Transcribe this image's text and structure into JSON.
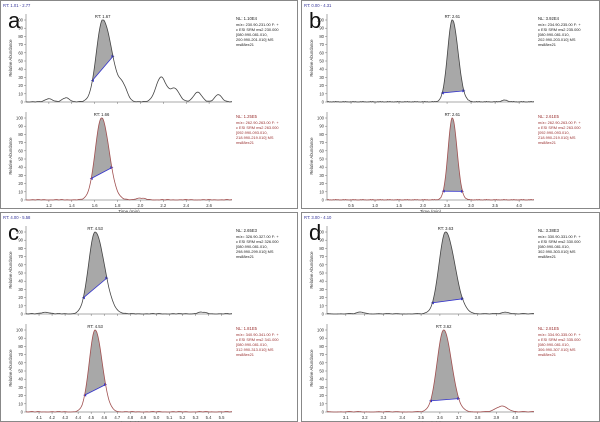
{
  "chart_data": [
    {
      "type": "line",
      "panel": "a",
      "rt_range": "RT: 1.01 - 2.77",
      "x_ticks": [
        "1.2",
        "1.4",
        "1.6",
        "1.8",
        "2.0",
        "2.2",
        "2.4",
        "2.6"
      ],
      "xlabel": "Time (min)",
      "ylabel": "Relative Abundance",
      "y_ticks": [
        "0",
        "10",
        "20",
        "30",
        "40",
        "50",
        "60",
        "70",
        "80",
        "90",
        "100"
      ],
      "xlim": [
        1.0,
        2.8
      ],
      "ylim": [
        0,
        100
      ],
      "traces": [
        {
          "rt_label": "RT: 1.67",
          "nl": "NL: 1.10E4",
          "filter": [
            "m/z= 230.90-231.00 F: +",
            "c ESI SRM ms2 230.000",
            "[080.990-081.010,",
            "200.990-201.010]  MS",
            "ms88ex21"
          ],
          "color": "#444444",
          "peak": {
            "center": 1.67,
            "height": 100,
            "width": 0.055,
            "tail": 1.5
          },
          "noise": [
            {
              "x": 1.85,
              "h": 14,
              "w": 0.035
            },
            {
              "x": 2.18,
              "h": 30,
              "w": 0.045
            },
            {
              "x": 2.3,
              "h": 16,
              "w": 0.04
            },
            {
              "x": 2.5,
              "h": 12,
              "w": 0.035
            },
            {
              "x": 2.68,
              "h": 9,
              "w": 0.03
            },
            {
              "x": 1.2,
              "h": 4,
              "w": 0.03
            },
            {
              "x": 1.35,
              "h": 5,
              "w": 0.03
            }
          ],
          "baseline": [
            1.58,
            1.76
          ]
        },
        {
          "rt_label": "RT: 1.66",
          "nl": "NL: 1.25E5",
          "filter": [
            "m/z= 262.90-263.00 F: +",
            "c ESI SRM ms2 263.000",
            "[092.990-093.010,",
            "218.990-219.010]  MS",
            "ms88ex21"
          ],
          "color": "#a05050",
          "peak": {
            "center": 1.66,
            "height": 100,
            "width": 0.055,
            "tail": 1.2
          },
          "noise": [
            {
              "x": 2.0,
              "h": 2,
              "w": 0.04
            }
          ],
          "baseline": [
            1.57,
            1.75
          ]
        }
      ]
    },
    {
      "type": "line",
      "panel": "b",
      "rt_range": "RT: 0.00 - 4.31",
      "x_ticks": [
        "0.5",
        "1.0",
        "1.5",
        "2.0",
        "2.5",
        "3.0",
        "3.5",
        "4.0"
      ],
      "xlabel": "Time (min)",
      "ylabel": "Relative Abundance",
      "y_ticks": [
        "0",
        "10",
        "20",
        "30",
        "40",
        "50",
        "60",
        "70",
        "80",
        "90",
        "100"
      ],
      "xlim": [
        0.0,
        4.31
      ],
      "ylim": [
        0,
        100
      ],
      "traces": [
        {
          "rt_label": "RT: 2.61",
          "nl": "NL: 3.92E4",
          "filter": [
            "m/z= 234.90-235.00 F: +",
            "c ESI SRM ms2 235.000",
            "[080.990-081.010,",
            "202.990-203.010]  MS",
            "ms88ex21"
          ],
          "color": "#444444",
          "peak": {
            "center": 2.61,
            "height": 100,
            "width": 0.1,
            "tail": 1.2
          },
          "noise": [
            {
              "x": 3.7,
              "h": 2,
              "w": 0.06
            }
          ],
          "baseline": [
            2.4,
            2.85
          ]
        },
        {
          "rt_label": "RT: 2.61",
          "nl": "NL: 2.61E5",
          "filter": [
            "m/z= 262.90-263.00 F: +",
            "c ESI SRM ms2 263.000",
            "[092.990-093.010,",
            "218.990-219.010]  MS",
            "ms88ex21"
          ],
          "color": "#a05050",
          "peak": {
            "center": 2.61,
            "height": 100,
            "width": 0.09,
            "tail": 1.1
          },
          "noise": [],
          "baseline": [
            2.42,
            2.82
          ]
        }
      ]
    },
    {
      "type": "line",
      "panel": "c",
      "rt_range": "RT: 4.00 - 5.58",
      "x_ticks": [
        "4.1",
        "4.2",
        "4.3",
        "4.4",
        "4.5",
        "4.6",
        "4.7",
        "4.8",
        "4.9",
        "5.0",
        "5.1",
        "5.2",
        "5.3",
        "5.4",
        "5.5"
      ],
      "xlabel": "Time (min)",
      "ylabel": "Relative Abundance",
      "y_ticks": [
        "0",
        "10",
        "20",
        "30",
        "40",
        "50",
        "60",
        "70",
        "80",
        "90",
        "100"
      ],
      "xlim": [
        4.0,
        5.58
      ],
      "ylim": [
        0,
        100
      ],
      "traces": [
        {
          "rt_label": "RT: 4.53",
          "nl": "NL: 2.65E3",
          "filter": [
            "m/z= 326.90-327.00 F: +",
            "c ESI SRM ms2 326.000",
            "[080.990-081.010,",
            "298.990-299.010]  MS",
            "ms88ex21"
          ],
          "color": "#444444",
          "peak": {
            "center": 4.53,
            "height": 100,
            "width": 0.05,
            "tail": 1.4
          },
          "noise": [
            {
              "x": 4.15,
              "h": 2,
              "w": 0.03
            },
            {
              "x": 5.35,
              "h": 2,
              "w": 0.03
            }
          ],
          "baseline": [
            4.44,
            4.62
          ]
        },
        {
          "rt_label": "RT: 4.53",
          "nl": "NL: 1.81E5",
          "filter": [
            "m/z= 340.90-341.00 F: +",
            "c ESI SRM ms2 341.000",
            "[080.990-081.010,",
            "312.990-313.010]  MS",
            "ms88ex21"
          ],
          "color": "#a05050",
          "peak": {
            "center": 4.53,
            "height": 100,
            "width": 0.045,
            "tail": 1.2
          },
          "noise": [],
          "baseline": [
            4.45,
            4.61
          ]
        }
      ]
    },
    {
      "type": "line",
      "panel": "d",
      "rt_range": "RT: 3.00 - 4.10",
      "x_ticks": [
        "3.1",
        "3.2",
        "3.3",
        "3.4",
        "3.5",
        "3.6",
        "3.7",
        "3.8",
        "3.9",
        "4.0"
      ],
      "xlabel": "Time (min)",
      "ylabel": "Relative Abundance",
      "y_ticks": [
        "0",
        "10",
        "20",
        "30",
        "40",
        "50",
        "60",
        "70",
        "80",
        "90",
        "100"
      ],
      "xlim": [
        3.0,
        4.1
      ],
      "ylim": [
        0,
        100
      ],
      "traces": [
        {
          "rt_label": "RT: 3.63",
          "nl": "NL: 3.38E3",
          "filter": [
            "m/z= 330.90-331.00 F: +",
            "c ESI SRM ms2 330.000",
            "[080.990-081.010,",
            "302.990-303.010]  MS",
            "ms88ex21"
          ],
          "color": "#444444",
          "peak": {
            "center": 3.63,
            "height": 100,
            "width": 0.035,
            "tail": 1.4
          },
          "noise": [
            {
              "x": 3.18,
              "h": 2,
              "w": 0.02
            },
            {
              "x": 3.95,
              "h": 2,
              "w": 0.02
            }
          ],
          "baseline": [
            3.56,
            3.72
          ]
        },
        {
          "rt_label": "RT: 3.62",
          "nl": "NL: 2.81E5",
          "filter": [
            "m/z= 334.90-335.00 F: +",
            "c ESI SRM ms2 335.000",
            "[080.990-081.010,",
            "306.990-307.010]  MS",
            "ms88ex21"
          ],
          "color": "#a05050",
          "peak": {
            "center": 3.62,
            "height": 100,
            "width": 0.035,
            "tail": 1.2
          },
          "noise": [
            {
              "x": 3.93,
              "h": 7,
              "w": 0.03
            }
          ],
          "baseline": [
            3.55,
            3.7
          ]
        }
      ]
    }
  ]
}
